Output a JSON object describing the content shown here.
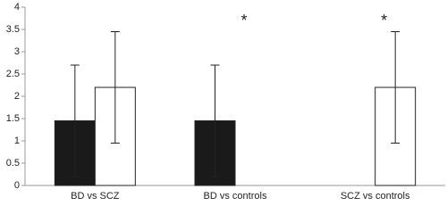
{
  "chart_data": {
    "type": "bar",
    "categories": [
      "BD vs SCZ",
      "BD vs controls",
      "SCZ vs controls"
    ],
    "series": [
      {
        "color": "#1a1a1a",
        "values": [
          1.45,
          1.45,
          null
        ],
        "errors": [
          1.25,
          1.25,
          null
        ]
      },
      {
        "color": "#ffffff",
        "values": [
          2.2,
          null,
          2.2
        ],
        "errors": [
          1.25,
          null,
          1.25
        ]
      }
    ],
    "ylim": [
      0,
      4
    ],
    "yticks": [
      0,
      0.5,
      1,
      1.5,
      2,
      2.5,
      3,
      3.5,
      4
    ],
    "grid": false,
    "annotations": [
      {
        "text": "*",
        "category": "BD vs controls"
      },
      {
        "text": "*",
        "category": "SCZ vs controls"
      }
    ]
  }
}
